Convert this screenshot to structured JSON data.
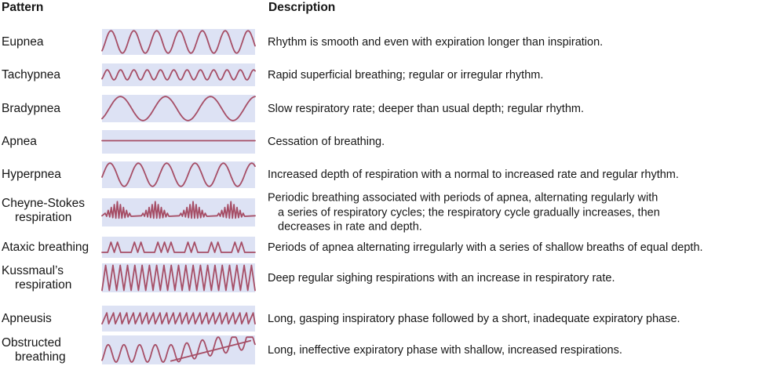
{
  "header": {
    "pattern": "Pattern",
    "description": "Description"
  },
  "accent": {
    "wave_color": "#a64e66",
    "box_color": "#dde2f4",
    "text_color": "#161616"
  },
  "rows": [
    {
      "label_lines": [
        "Eupnea"
      ],
      "desc": "Rhythm is smooth and even with expiration longer than inspiration.",
      "wave": {
        "kind": "sine",
        "cycles": 6.7,
        "amp": 1,
        "phase": -0.9
      }
    },
    {
      "label_lines": [
        "Tachypnea"
      ],
      "desc": "Rapid superficial breathing; regular or irregular rhythm.",
      "wave": {
        "kind": "sine",
        "cycles": 11.5,
        "amp": 0.52,
        "phase": -0.9
      }
    },
    {
      "label_lines": [
        "Bradypnea"
      ],
      "desc": "Slow respiratory rate; deeper than usual depth; regular rhythm.",
      "wave": {
        "kind": "sine",
        "cycles": 3.4,
        "amp": 1,
        "phase": -1.0
      }
    },
    {
      "label_lines": [
        "Apnea"
      ],
      "desc": "Cessation of breathing.",
      "wave": {
        "kind": "flat",
        "y": 0.45
      }
    },
    {
      "label_lines": [
        "Hyperpnea"
      ],
      "desc": "Increased depth of respiration with a normal to increased rate and regular rhythm.",
      "wave": {
        "kind": "sine",
        "cycles": 5.4,
        "amp": 1,
        "phase": -0.2
      }
    },
    {
      "label_lines": [
        "Cheyne-Stokes",
        "respiration"
      ],
      "desc_lines": [
        "Periodic breathing associated with periods of apnea, alternating regularly with",
        "a series of respiratory cycles; the respiratory cycle gradually increases, then",
        "decreases in rate and depth."
      ],
      "wave": {
        "kind": "cheyne",
        "bursts": 4,
        "spikes": 9
      }
    },
    {
      "label_lines": [
        "Ataxic breathing"
      ],
      "desc": "Periods of apnea alternating irregularly with a series of shallow breaths of equal depth.",
      "wave": {
        "kind": "ataxic",
        "groups": [
          2,
          2,
          3,
          2,
          2,
          2
        ]
      }
    },
    {
      "label_lines": [
        "Kussmaul’s",
        "respiration"
      ],
      "desc": "Deep regular sighing respirations with an increase in respiratory rate.",
      "wave": {
        "kind": "triangle",
        "n": 21
      }
    },
    {
      "label_lines": [
        "Apneusis"
      ],
      "desc": "Long, gasping inspiratory phase followed by a short, inadequate expiratory phase.",
      "wave": {
        "kind": "saw",
        "n": 23
      }
    },
    {
      "label_lines": [
        "Obstructed",
        "breathing"
      ],
      "desc": "Long, ineffective expiratory phase with shallow, increased respirations.",
      "wave": {
        "kind": "obstructed",
        "period": 20
      }
    }
  ]
}
